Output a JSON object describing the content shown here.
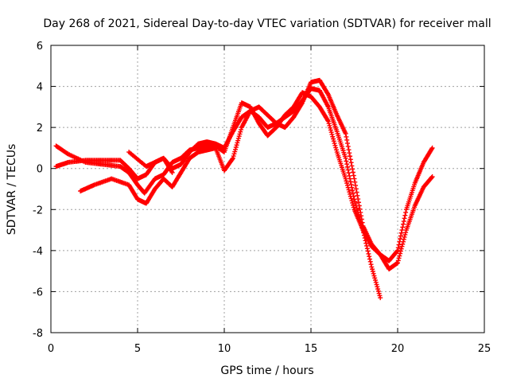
{
  "chart_data": {
    "type": "scatter",
    "title": "Day 268 of 2021, Sidereal Day-to-day VTEC variation (SDTVAR) for receiver mall",
    "xlabel": "GPS time / hours",
    "ylabel": "SDTVAR / TECUs",
    "xlim": [
      0,
      25
    ],
    "ylim": [
      -8,
      6
    ],
    "x_ticks": [
      "0",
      "5",
      "10",
      "15",
      "20",
      "25"
    ],
    "y_ticks": [
      "-8",
      "-6",
      "-4",
      "-2",
      "0",
      "2",
      "4",
      "6"
    ],
    "grid": true,
    "legend": "none",
    "marker": "+",
    "color": "#ff0000",
    "series": [
      {
        "x": [
          0.3,
          1.0,
          2.0,
          3.0,
          4.0,
          4.5,
          5.0,
          5.4,
          6.0,
          6.5,
          7.0,
          7.5,
          8.0,
          8.5,
          9.0,
          9.5,
          10.0,
          10.5,
          11.0,
          11.5,
          12.0,
          12.5,
          13.0,
          13.5,
          14.0,
          14.5,
          15.0,
          15.5,
          16.0,
          16.5,
          17.0,
          17.5,
          18.0,
          18.5,
          19.0,
          19.5,
          20.0,
          20.5,
          21.0,
          21.5,
          22.0
        ],
        "y": [
          1.1,
          0.7,
          0.3,
          0.2,
          0.1,
          -0.2,
          -0.8,
          -1.2,
          -0.5,
          -0.3,
          0.3,
          0.5,
          0.9,
          1.0,
          1.1,
          1.1,
          0.8,
          2.0,
          3.2,
          3.0,
          2.2,
          1.6,
          2.0,
          2.6,
          3.0,
          3.7,
          3.5,
          3.0,
          2.3,
          0.8,
          -0.5,
          -2.0,
          -3.0,
          -3.8,
          -4.2,
          -4.5,
          -4.0,
          -2.0,
          -0.7,
          0.3,
          1.0
        ]
      },
      {
        "x": [
          0.3,
          1.0,
          2.0,
          3.0,
          4.0,
          4.5,
          5.0,
          5.5,
          6.0,
          6.5,
          7.0,
          7.5,
          8.0,
          8.5,
          9.0,
          9.5,
          10.0,
          10.5,
          11.0,
          11.5,
          12.0,
          12.5,
          13.0,
          13.5,
          14.0,
          14.5,
          15.0,
          15.5,
          16.0,
          16.5,
          17.0,
          17.5,
          18.0,
          18.5,
          19.0
        ],
        "y": [
          0.1,
          0.3,
          0.4,
          0.4,
          0.4,
          0.0,
          -0.5,
          -0.3,
          0.3,
          0.5,
          0.0,
          0.2,
          0.8,
          1.2,
          1.3,
          1.2,
          1.0,
          1.8,
          2.5,
          2.8,
          2.5,
          2.0,
          2.2,
          2.5,
          2.8,
          3.3,
          3.9,
          3.8,
          3.0,
          1.8,
          0.5,
          -1.5,
          -3.0,
          -4.8,
          -6.3
        ]
      },
      {
        "x": [
          1.7,
          2.5,
          3.5,
          4.5,
          5.0,
          5.5,
          6.0,
          6.5,
          7.0,
          7.5,
          8.0,
          8.5,
          9.0,
          9.5,
          10.0,
          10.5,
          11.0,
          11.5,
          12.0,
          12.5,
          13.0,
          13.5,
          14.0,
          14.5,
          15.0,
          15.5,
          16.0,
          16.5,
          17.0,
          17.5,
          18.0,
          18.5,
          19.0,
          19.5,
          20.0,
          20.5,
          21.0,
          21.5,
          22.0
        ],
        "y": [
          -1.1,
          -0.8,
          -0.5,
          -0.8,
          -1.5,
          -1.7,
          -1.0,
          -0.5,
          -0.9,
          -0.2,
          0.5,
          0.8,
          0.9,
          1.0,
          -0.1,
          0.5,
          2.0,
          2.8,
          3.0,
          2.6,
          2.2,
          2.0,
          2.5,
          3.2,
          4.2,
          4.3,
          3.6,
          2.6,
          1.7,
          -0.5,
          -2.8,
          -3.7,
          -4.2,
          -4.9,
          -4.6,
          -3.0,
          -1.8,
          -0.9,
          -0.4
        ]
      },
      {
        "x": [
          4.5,
          5.5,
          6.0,
          6.5,
          7.0
        ],
        "y": [
          0.8,
          0.1,
          0.3,
          0.5,
          -0.2
        ]
      }
    ]
  }
}
